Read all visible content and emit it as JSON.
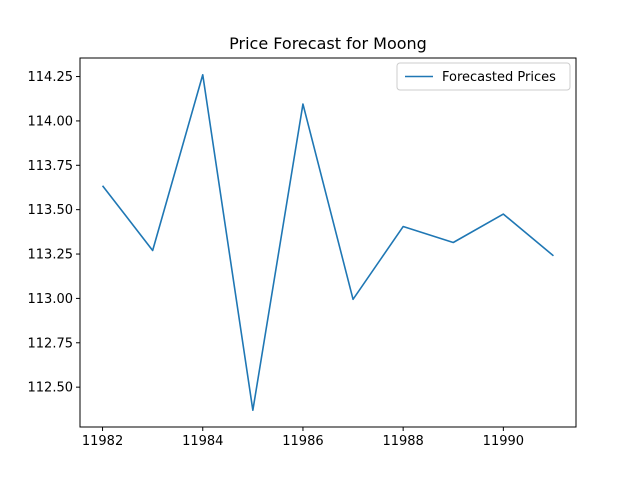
{
  "chart_data": {
    "type": "line",
    "title": "Price Forecast for Moong",
    "xlabel": "",
    "ylabel": "",
    "x": [
      11982,
      11983,
      11984,
      11985,
      11986,
      11987,
      11988,
      11989,
      11990,
      11991
    ],
    "series": [
      {
        "name": "Forecasted Prices",
        "color": "#1f77b4",
        "values": [
          113.635,
          113.27,
          114.26,
          112.37,
          114.095,
          112.995,
          113.405,
          113.315,
          113.475,
          113.24
        ]
      }
    ],
    "xlim": [
      11981.55,
      11991.45
    ],
    "ylim": [
      112.2755,
      114.3545
    ],
    "xticks": [
      11982,
      11984,
      11986,
      11988,
      11990
    ],
    "xtick_labels": [
      "11982",
      "11984",
      "11986",
      "11988",
      "11990"
    ],
    "yticks": [
      112.5,
      112.75,
      113.0,
      113.25,
      113.5,
      113.75,
      114.0,
      114.25
    ],
    "ytick_labels": [
      "112.50",
      "112.75",
      "113.00",
      "113.25",
      "113.50",
      "113.75",
      "114.00",
      "114.25"
    ],
    "grid": false,
    "legend_position": "upper right"
  }
}
